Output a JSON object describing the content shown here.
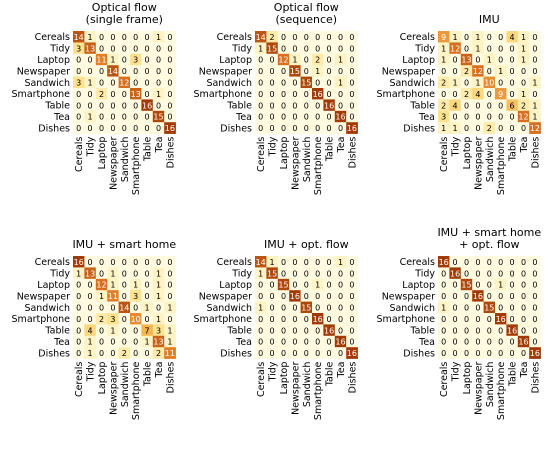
{
  "chart_data": [
    {
      "type": "heatmap",
      "title": [
        "Optical flow",
        "(single frame)"
      ],
      "categories": [
        "Cereals",
        "Tidy",
        "Laptop",
        "Newspaper",
        "Sandwich",
        "Smartphone",
        "Table",
        "Tea",
        "Dishes"
      ],
      "matrix": [
        [
          14,
          1,
          0,
          0,
          0,
          0,
          0,
          1,
          0
        ],
        [
          3,
          13,
          0,
          0,
          0,
          0,
          0,
          0,
          0
        ],
        [
          0,
          0,
          11,
          1,
          0,
          3,
          0,
          0,
          0
        ],
        [
          0,
          0,
          0,
          14,
          0,
          0,
          0,
          0,
          0
        ],
        [
          3,
          1,
          0,
          0,
          12,
          0,
          0,
          0,
          0
        ],
        [
          0,
          0,
          2,
          0,
          0,
          13,
          0,
          1,
          0
        ],
        [
          0,
          0,
          0,
          0,
          0,
          0,
          16,
          0,
          0
        ],
        [
          0,
          1,
          0,
          0,
          0,
          0,
          0,
          15,
          0
        ],
        [
          0,
          0,
          0,
          0,
          0,
          0,
          0,
          0,
          16
        ]
      ]
    },
    {
      "type": "heatmap",
      "title": [
        "Optical flow",
        "(sequence)"
      ],
      "categories": [
        "Cereals",
        "Tidy",
        "Laptop",
        "Newspaper",
        "Sandwich",
        "Smartphone",
        "Table",
        "Tea",
        "Dishes"
      ],
      "matrix": [
        [
          14,
          2,
          0,
          0,
          0,
          0,
          0,
          0,
          0
        ],
        [
          1,
          15,
          0,
          0,
          0,
          0,
          0,
          0,
          0
        ],
        [
          0,
          0,
          12,
          1,
          0,
          2,
          0,
          1,
          0
        ],
        [
          0,
          0,
          0,
          15,
          0,
          1,
          0,
          0,
          0
        ],
        [
          0,
          0,
          0,
          0,
          15,
          0,
          0,
          1,
          0
        ],
        [
          0,
          0,
          0,
          0,
          0,
          16,
          0,
          0,
          0
        ],
        [
          0,
          0,
          0,
          0,
          0,
          0,
          16,
          0,
          0
        ],
        [
          0,
          0,
          0,
          0,
          0,
          0,
          0,
          16,
          0
        ],
        [
          0,
          0,
          0,
          0,
          0,
          0,
          0,
          0,
          16
        ]
      ]
    },
    {
      "type": "heatmap",
      "title": [
        "IMU"
      ],
      "categories": [
        "Cereals",
        "Tidy",
        "Laptop",
        "Newspaper",
        "Sandwich",
        "Smartphone",
        "Table",
        "Tea",
        "Dishes"
      ],
      "matrix": [
        [
          9,
          1,
          0,
          1,
          0,
          0,
          4,
          1,
          0
        ],
        [
          1,
          12,
          0,
          1,
          0,
          0,
          0,
          1,
          0
        ],
        [
          1,
          0,
          13,
          0,
          1,
          0,
          0,
          1,
          0
        ],
        [
          0,
          0,
          2,
          12,
          0,
          1,
          0,
          0,
          0
        ],
        [
          2,
          1,
          0,
          1,
          10,
          0,
          0,
          0,
          1
        ],
        [
          0,
          0,
          2,
          4,
          0,
          9,
          0,
          1,
          0
        ],
        [
          2,
          4,
          0,
          0,
          0,
          0,
          6,
          2,
          1
        ],
        [
          3,
          0,
          0,
          0,
          0,
          0,
          0,
          12,
          1
        ],
        [
          1,
          1,
          0,
          0,
          2,
          0,
          0,
          0,
          12
        ]
      ]
    },
    {
      "type": "heatmap",
      "title": [
        "IMU + smart home"
      ],
      "categories": [
        "Cereals",
        "Tidy",
        "Laptop",
        "Newspaper",
        "Sandwich",
        "Smartphone",
        "Table",
        "Tea",
        "Dishes"
      ],
      "matrix": [
        [
          16,
          0,
          0,
          0,
          0,
          0,
          0,
          0,
          0
        ],
        [
          1,
          13,
          0,
          1,
          0,
          0,
          0,
          1,
          0
        ],
        [
          0,
          0,
          12,
          1,
          0,
          1,
          0,
          1,
          0
        ],
        [
          0,
          0,
          1,
          11,
          0,
          3,
          0,
          1,
          0
        ],
        [
          0,
          0,
          0,
          0,
          14,
          0,
          1,
          0,
          1
        ],
        [
          0,
          0,
          2,
          3,
          0,
          10,
          0,
          1,
          0
        ],
        [
          0,
          4,
          0,
          1,
          0,
          0,
          7,
          3,
          1
        ],
        [
          0,
          1,
          0,
          0,
          0,
          0,
          1,
          13,
          1
        ],
        [
          0,
          1,
          0,
          0,
          2,
          0,
          0,
          2,
          11
        ]
      ]
    },
    {
      "type": "heatmap",
      "title": [
        "IMU + opt. flow"
      ],
      "categories": [
        "Cereals",
        "Tidy",
        "Laptop",
        "Newspaper",
        "Sandwich",
        "Smartphone",
        "Table",
        "Tea",
        "Dishes"
      ],
      "matrix": [
        [
          14,
          1,
          0,
          0,
          0,
          0,
          0,
          1,
          0
        ],
        [
          1,
          15,
          0,
          0,
          0,
          0,
          0,
          0,
          0
        ],
        [
          0,
          0,
          15,
          0,
          0,
          1,
          0,
          0,
          0
        ],
        [
          0,
          0,
          0,
          16,
          0,
          0,
          0,
          0,
          0
        ],
        [
          1,
          0,
          0,
          0,
          15,
          0,
          0,
          0,
          0
        ],
        [
          0,
          0,
          0,
          0,
          0,
          16,
          0,
          0,
          0
        ],
        [
          0,
          0,
          0,
          0,
          0,
          0,
          16,
          0,
          0
        ],
        [
          0,
          0,
          0,
          0,
          0,
          0,
          0,
          16,
          0
        ],
        [
          0,
          0,
          0,
          0,
          0,
          0,
          0,
          0,
          16
        ]
      ]
    },
    {
      "type": "heatmap",
      "title": [
        "IMU + smart home",
        "+ opt. flow"
      ],
      "categories": [
        "Cereals",
        "Tidy",
        "Laptop",
        "Newspaper",
        "Sandwich",
        "Smartphone",
        "Table",
        "Tea",
        "Dishes"
      ],
      "matrix": [
        [
          16,
          0,
          0,
          0,
          0,
          0,
          0,
          0,
          0
        ],
        [
          0,
          16,
          0,
          0,
          0,
          0,
          0,
          0,
          0
        ],
        [
          0,
          0,
          15,
          0,
          0,
          1,
          0,
          0,
          0
        ],
        [
          0,
          0,
          0,
          16,
          0,
          0,
          0,
          0,
          0
        ],
        [
          1,
          0,
          0,
          0,
          15,
          0,
          0,
          0,
          0
        ],
        [
          0,
          0,
          0,
          0,
          0,
          16,
          0,
          0,
          0
        ],
        [
          0,
          0,
          0,
          0,
          0,
          0,
          16,
          0,
          0
        ],
        [
          0,
          0,
          0,
          0,
          0,
          0,
          0,
          16,
          0
        ],
        [
          0,
          0,
          0,
          0,
          0,
          0,
          0,
          0,
          16
        ]
      ]
    }
  ],
  "colors": {
    "low": "#fffbe0",
    "mid1": "#fde08a",
    "mid2": "#f3b24e",
    "mid3": "#e07b26",
    "high": "#a13a05",
    "dark_text": "#000000",
    "light_text": "#ffffff"
  },
  "color_scale_max": 16
}
